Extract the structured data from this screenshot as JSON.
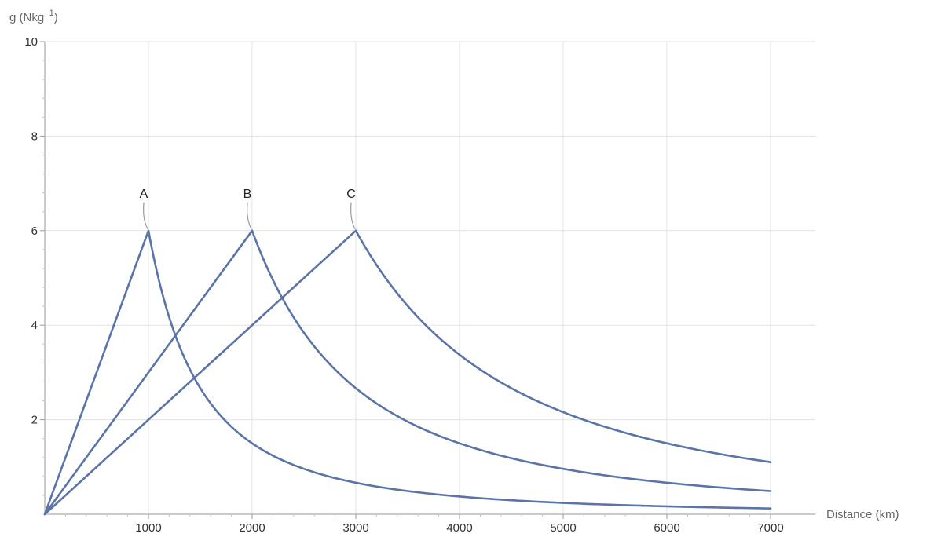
{
  "chart_data": {
    "type": "line",
    "ylabel_text": "g (Nkg",
    "ylabel_exp": "−1",
    "ylabel_close": ")",
    "xlabel": "Distance (km)",
    "xlim": [
      0,
      7000
    ],
    "ylim": [
      0,
      10
    ],
    "x_ticks": [
      1000,
      2000,
      3000,
      4000,
      5000,
      6000,
      7000
    ],
    "x_tick_labels": [
      "1000",
      "2000",
      "3000",
      "4000",
      "5000",
      "6000",
      "7000"
    ],
    "y_ticks": [
      2,
      4,
      6,
      8,
      10
    ],
    "y_tick_labels": [
      "2",
      "4",
      "6",
      "8",
      "10"
    ],
    "grid": true,
    "series": [
      {
        "name": "A",
        "radius_km": 1000,
        "peak_g": 6
      },
      {
        "name": "B",
        "radius_km": 2000,
        "peak_g": 6
      },
      {
        "name": "C",
        "radius_km": 3000,
        "peak_g": 6
      }
    ],
    "description": "g rises linearly from 0 to peak at the surface radius, then falls as an inverse square of distance",
    "line_color": "#5b74a8"
  }
}
